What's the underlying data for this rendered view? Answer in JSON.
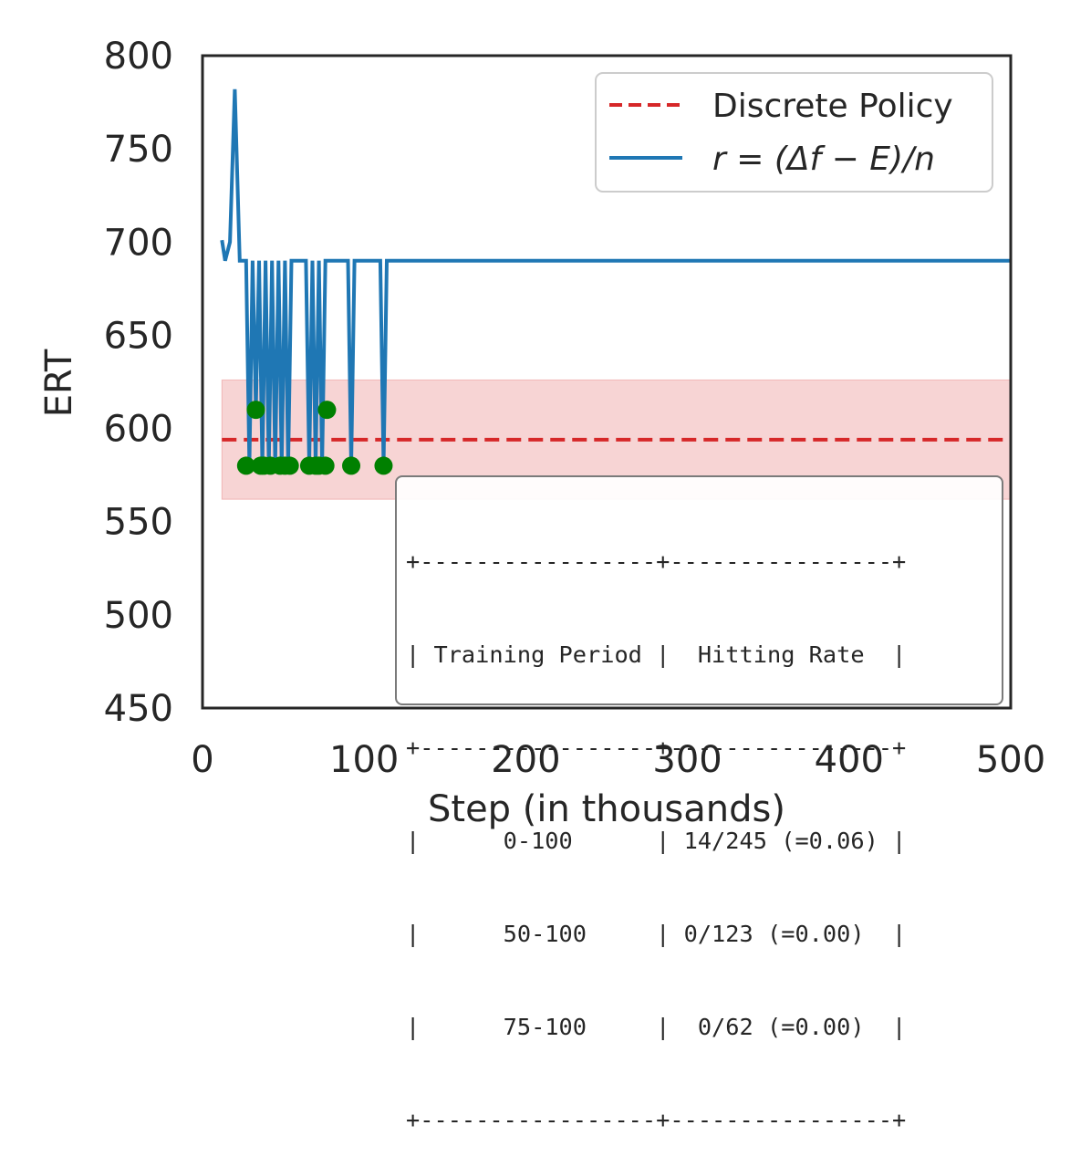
{
  "chart_data": {
    "type": "line",
    "title": "",
    "xlabel": "Step (in thousands)",
    "ylabel": "ERT",
    "xlim": [
      0,
      500
    ],
    "ylim": [
      450,
      800
    ],
    "xticks": [
      "0",
      "100",
      "200",
      "300",
      "400",
      "500"
    ],
    "yticks": [
      "450",
      "500",
      "550",
      "600",
      "650",
      "700",
      "750",
      "800"
    ],
    "grid": false,
    "legend_position": "top-right",
    "series": [
      {
        "name": "r = (Δf − E)/n",
        "style": "solid",
        "color": "#1f77b4",
        "x": [
          12,
          14,
          17,
          20,
          23,
          27,
          29,
          31,
          33,
          35,
          37,
          39,
          41,
          43,
          45,
          47,
          49,
          51,
          53,
          55,
          64,
          66,
          68,
          70,
          72,
          74,
          76,
          78,
          90,
          92,
          94,
          110,
          112,
          114,
          500
        ],
        "y": [
          701,
          690,
          700,
          782,
          690,
          690,
          580,
          690,
          610,
          690,
          580,
          690,
          580,
          690,
          580,
          690,
          580,
          690,
          580,
          690,
          690,
          580,
          690,
          580,
          690,
          580,
          690,
          690,
          690,
          580,
          690,
          690,
          580,
          690,
          690
        ]
      },
      {
        "name": "Discrete Policy",
        "style": "dashed",
        "color": "#d62728",
        "x": [
          12,
          500
        ],
        "y": [
          594,
          594
        ],
        "band": [
          562,
          626
        ]
      }
    ],
    "hit_points": {
      "color": "#008000",
      "x": [
        27,
        33,
        36,
        38,
        42,
        48,
        51,
        54,
        66,
        70,
        72,
        76,
        77,
        92,
        112
      ],
      "y": [
        580,
        610,
        580,
        580,
        580,
        580,
        580,
        580,
        580,
        580,
        580,
        580,
        610,
        580,
        580
      ]
    },
    "legend": [
      {
        "label": "Discrete Policy",
        "style": "dashed",
        "color": "#d62728"
      },
      {
        "label": "r = (Δf − E)/n",
        "style": "solid",
        "color": "#1f77b4"
      }
    ],
    "table": {
      "headers": [
        "Training Period",
        "Hitting Rate"
      ],
      "rows": [
        [
          "0-100",
          "14/245 (=0.06)"
        ],
        [
          "50-100",
          "0/123 (=0.00)"
        ],
        [
          "75-100",
          "0/62 (=0.00)"
        ]
      ],
      "text_lines": [
        "+-----------------+----------------+",
        "| Training Period |  Hitting Rate  |",
        "+-----------------+----------------+",
        "|      0-100      | 14/245 (=0.06) |",
        "|      50-100     | 0/123 (=0.00)  |",
        "|      75-100     |  0/62 (=0.00)  |",
        "+-----------------+----------------+"
      ]
    }
  }
}
